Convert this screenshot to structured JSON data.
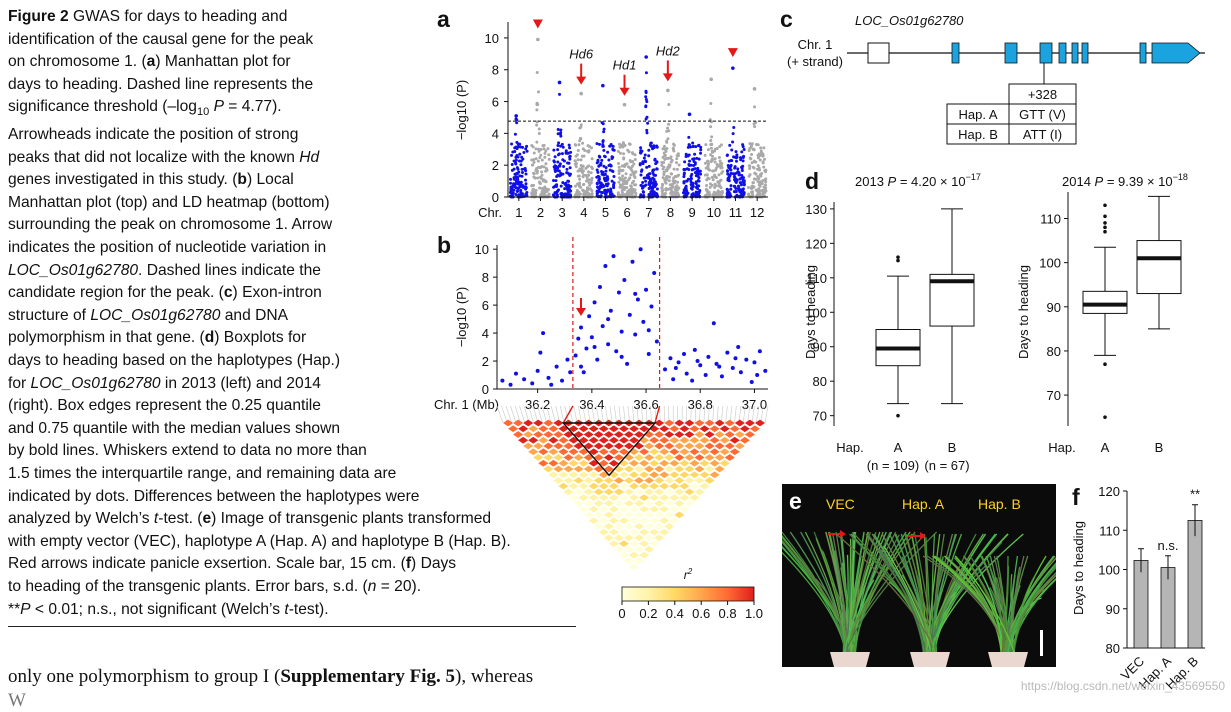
{
  "caption": {
    "lines": [
      {
        "segments": [
          {
            "t": "Figure 2",
            "b": true
          },
          {
            "t": "  GWAS for days to heading and"
          }
        ]
      },
      {
        "segments": [
          {
            "t": "identification of the causal gene for the peak"
          }
        ]
      },
      {
        "segments": [
          {
            "t": "on chromosome 1. ("
          },
          {
            "t": "a",
            "b": true
          },
          {
            "t": ") Manhattan plot for"
          }
        ]
      },
      {
        "segments": [
          {
            "t": "days to heading. Dashed line represents the"
          }
        ]
      },
      {
        "segments": [
          {
            "t": "significance threshold (–log"
          },
          {
            "t": "10",
            "sub": true
          },
          {
            "t": " "
          },
          {
            "t": "P",
            "i": true
          },
          {
            "t": " = 4.77)."
          }
        ]
      },
      {
        "segments": [
          {
            "t": "Arrowheads indicate the position of strong"
          }
        ]
      },
      {
        "segments": [
          {
            "t": "peaks that did not localize with the known "
          },
          {
            "t": "Hd",
            "i": true
          }
        ]
      },
      {
        "segments": [
          {
            "t": "genes investigated in this study. ("
          },
          {
            "t": "b",
            "b": true
          },
          {
            "t": ") Local"
          }
        ]
      },
      {
        "segments": [
          {
            "t": "Manhattan plot (top) and LD heatmap (bottom)"
          }
        ]
      },
      {
        "segments": [
          {
            "t": "surrounding the peak on chromosome 1. Arrow"
          }
        ]
      },
      {
        "segments": [
          {
            "t": "indicates the position of nucleotide variation in"
          }
        ]
      },
      {
        "segments": [
          {
            "t": "LOC_Os01g62780",
            "i": true
          },
          {
            "t": ". Dashed lines indicate the"
          }
        ]
      },
      {
        "segments": [
          {
            "t": "candidate region for the peak. ("
          },
          {
            "t": "c",
            "b": true
          },
          {
            "t": ") Exon-intron"
          }
        ]
      },
      {
        "segments": [
          {
            "t": "structure of "
          },
          {
            "t": "LOC_Os01g62780",
            "i": true
          },
          {
            "t": " and DNA"
          }
        ]
      },
      {
        "segments": [
          {
            "t": "polymorphism in that gene. ("
          },
          {
            "t": "d",
            "b": true
          },
          {
            "t": ") Boxplots for"
          }
        ]
      },
      {
        "segments": [
          {
            "t": "days to heading based on the haplotypes (Hap.)"
          }
        ]
      },
      {
        "segments": [
          {
            "t": "for "
          },
          {
            "t": "LOC_Os01g62780",
            "i": true
          },
          {
            "t": " in 2013 (left) and 2014"
          }
        ]
      },
      {
        "segments": [
          {
            "t": "(right). Box edges represent the 0.25 quantile"
          }
        ]
      },
      {
        "segments": [
          {
            "t": "and 0.75 quantile with the median values shown"
          }
        ]
      },
      {
        "segments": [
          {
            "t": "by bold lines. Whiskers extend to data no more than"
          }
        ]
      },
      {
        "segments": [
          {
            "t": "1.5 times the interquartile range, and remaining data are"
          }
        ]
      },
      {
        "segments": [
          {
            "t": "indicated by dots. Differences between the haplotypes were"
          }
        ]
      },
      {
        "segments": [
          {
            "t": "analyzed by Welch’s "
          },
          {
            "t": "t",
            "i": true
          },
          {
            "t": "-test. ("
          },
          {
            "t": "e",
            "b": true
          },
          {
            "t": ") Image of transgenic plants transformed"
          }
        ]
      },
      {
        "segments": [
          {
            "t": "with empty vector (VEC), haplotype A (Hap. A) and haplotype B (Hap. B)."
          }
        ]
      },
      {
        "segments": [
          {
            "t": "Red arrows indicate panicle exsertion. Scale bar, 15 cm. ("
          },
          {
            "t": "f",
            "b": true
          },
          {
            "t": ") Days"
          }
        ]
      },
      {
        "segments": [
          {
            "t": "to heading of the transgenic plants. Error bars, s.d. ("
          },
          {
            "t": "n",
            "i": true
          },
          {
            "t": " = 20)."
          }
        ]
      },
      {
        "segments": [
          {
            "t": "**"
          },
          {
            "t": "P",
            "i": true
          },
          {
            "t": " < 0.01; n.s., not significant (Welch’s "
          },
          {
            "t": "t",
            "i": true
          },
          {
            "t": "-test)."
          }
        ]
      }
    ]
  },
  "body": {
    "line1_pre": "only one polymorphism to group I (",
    "line1_ref": "Supplementary Fig. 5",
    "line1_post": "), whereas",
    "line2_partial": "                                                                  W"
  },
  "panels": {
    "a": "a",
    "b": "b",
    "c": "c",
    "d": "d",
    "e": "e",
    "f": "f"
  },
  "colors": {
    "blue": "#1010e6",
    "gray": "#a9a9a9",
    "red": "#e01919",
    "exon": "#1aa3df"
  },
  "chart_data": [
    {
      "panel": "a",
      "type": "scatter",
      "title": "",
      "ylabel": "−log10 (P)",
      "xlabel": "Chr.",
      "ylim": [
        0,
        11
      ],
      "yticks": [
        0,
        2,
        4,
        6,
        8,
        10
      ],
      "categories": [
        "1",
        "2",
        "3",
        "4",
        "5",
        "6",
        "7",
        "8",
        "9",
        "10",
        "11",
        "12"
      ],
      "series_colors": [
        "blue",
        "gray"
      ],
      "chromosome_peaks": [
        5.1,
        9.9,
        7.2,
        6.5,
        7.0,
        5.8,
        8.8,
        6.7,
        5.2,
        7.4,
        8.1,
        6.8
      ],
      "threshold": 4.77,
      "annotations": [
        {
          "label": "Hd6",
          "chr": "4",
          "kind": "arrow"
        },
        {
          "label": "Hd1",
          "chr": "6",
          "kind": "arrow"
        },
        {
          "label": "Hd2",
          "chr": "8",
          "kind": "arrow"
        },
        {
          "label": "",
          "chr": "2",
          "kind": "arrowhead"
        },
        {
          "label": "",
          "chr": "11",
          "kind": "arrowhead"
        }
      ]
    },
    {
      "panel": "b",
      "type": "scatter",
      "ylabel": "−log10 (P)",
      "xlabel": "Chr. 1 (Mb)",
      "xlim": [
        36.05,
        37.05
      ],
      "ylim": [
        0,
        10.3
      ],
      "xticks": [
        "36.2",
        "36.4",
        "36.6",
        "36.8",
        "37.0"
      ],
      "yticks": [
        0,
        2,
        4,
        6,
        8,
        10
      ],
      "candidate_region": [
        36.33,
        36.65
      ],
      "arrow_x": 36.36,
      "points_left": [
        [
          36.07,
          0.6
        ],
        [
          36.1,
          0.3
        ],
        [
          36.12,
          1.1
        ],
        [
          36.15,
          0.7
        ],
        [
          36.18,
          0.4
        ],
        [
          36.2,
          1.3
        ],
        [
          36.21,
          2.6
        ],
        [
          36.22,
          4.0
        ],
        [
          36.24,
          0.8
        ],
        [
          36.25,
          0.3
        ],
        [
          36.27,
          1.6
        ],
        [
          36.29,
          0.6
        ],
        [
          36.31,
          2.1
        ],
        [
          36.32,
          1.2
        ]
      ],
      "points_right": [
        [
          36.67,
          1.4
        ],
        [
          36.69,
          2.2
        ],
        [
          36.7,
          0.7
        ],
        [
          36.72,
          1.9
        ],
        [
          36.74,
          2.5
        ],
        [
          36.75,
          1.1
        ],
        [
          36.77,
          0.6
        ],
        [
          36.78,
          2.8
        ],
        [
          36.8,
          1.7
        ],
        [
          36.82,
          1.0
        ],
        [
          36.83,
          2.3
        ],
        [
          36.85,
          4.7
        ],
        [
          36.86,
          1.8
        ],
        [
          36.88,
          0.9
        ],
        [
          36.9,
          2.6
        ],
        [
          36.92,
          1.5
        ],
        [
          36.94,
          3.0
        ],
        [
          36.95,
          1.2
        ],
        [
          36.97,
          2.1
        ],
        [
          36.99,
          0.5
        ],
        [
          37.0,
          1.9
        ],
        [
          37.02,
          2.7
        ],
        [
          37.04,
          1.3
        ],
        [
          36.71,
          1.5
        ],
        [
          36.79,
          2.0
        ],
        [
          36.87,
          1.6
        ],
        [
          36.93,
          2.2
        ],
        [
          37.01,
          1.0
        ]
      ],
      "points_peak": [
        [
          36.34,
          2.4
        ],
        [
          36.35,
          3.6
        ],
        [
          36.36,
          4.4
        ],
        [
          36.37,
          1.2
        ],
        [
          36.38,
          2.9
        ],
        [
          36.39,
          5.2
        ],
        [
          36.4,
          3.7
        ],
        [
          36.41,
          6.2
        ],
        [
          36.42,
          2.1
        ],
        [
          36.43,
          7.3
        ],
        [
          36.44,
          4.5
        ],
        [
          36.45,
          8.8
        ],
        [
          36.46,
          3.2
        ],
        [
          36.47,
          5.6
        ],
        [
          36.48,
          9.5
        ],
        [
          36.49,
          2.7
        ],
        [
          36.5,
          6.9
        ],
        [
          36.51,
          4.1
        ],
        [
          36.52,
          7.8
        ],
        [
          36.53,
          1.8
        ],
        [
          36.54,
          5.3
        ],
        [
          36.55,
          9.1
        ],
        [
          36.56,
          3.9
        ],
        [
          36.57,
          6.4
        ],
        [
          36.58,
          10.0
        ],
        [
          36.59,
          4.8
        ],
        [
          36.6,
          7.1
        ],
        [
          36.61,
          2.5
        ],
        [
          36.62,
          5.9
        ],
        [
          36.63,
          8.3
        ],
        [
          36.64,
          3.4
        ],
        [
          36.36,
          1.6
        ],
        [
          36.41,
          3.0
        ],
        [
          36.46,
          5.0
        ],
        [
          36.51,
          2.3
        ],
        [
          36.56,
          6.8
        ],
        [
          36.61,
          4.2
        ]
      ],
      "ld_legend": {
        "label": "r2",
        "ticks": [
          "0",
          "0.2",
          "0.4",
          "0.6",
          "0.8",
          "1.0"
        ]
      }
    },
    {
      "panel": "c",
      "type": "gene-structure",
      "gene": "LOC_Os01g62780",
      "chromosome_label_1": "Chr. 1",
      "chromosome_label_2": "(+ strand)",
      "table_header": [
        "",
        "+328"
      ],
      "table_rows": [
        [
          "Hap. A",
          "GTT (V)"
        ],
        [
          "Hap. B",
          "ATT (I)"
        ]
      ]
    },
    {
      "panel": "d",
      "type": "box",
      "ylabel": "Days to heading",
      "xlabel": "Hap.",
      "charts": [
        {
          "title_prefix": "2013 ",
          "title_p": "P",
          "title_rest": " = 4.20 × 10",
          "title_exp": "−17",
          "ylim": [
            67,
            132
          ],
          "yticks": [
            70,
            80,
            90,
            100,
            110,
            120,
            130
          ],
          "categories": [
            "A",
            "B"
          ],
          "boxes": [
            {
              "q1": 84.5,
              "median": 89.5,
              "q3": 95,
              "whisker_low": 73.5,
              "whisker_high": 110.5,
              "outliers": [
                115,
                116,
                70
              ]
            },
            {
              "q1": 96,
              "median": 109,
              "q3": 111,
              "whisker_low": 73.5,
              "whisker_high": 130,
              "outliers": []
            }
          ],
          "n_labels": [
            "(n = 109)",
            "(n = 67)"
          ]
        },
        {
          "title_prefix": "2014 ",
          "title_p": "P",
          "title_rest": " = 9.39 × 10",
          "title_exp": "−18",
          "ylim": [
            63,
            116
          ],
          "yticks": [
            70,
            80,
            90,
            100,
            110
          ],
          "categories": [
            "A",
            "B"
          ],
          "boxes": [
            {
              "q1": 88.5,
              "median": 90.5,
              "q3": 93.5,
              "whisker_low": 79,
              "whisker_high": 103.5,
              "outliers": [
                107,
                108,
                109,
                110.5,
                113,
                77,
                65
              ]
            },
            {
              "q1": 93,
              "median": 101,
              "q3": 105,
              "whisker_low": 85,
              "whisker_high": 115,
              "outliers": []
            }
          ]
        }
      ]
    },
    {
      "panel": "e",
      "type": "image",
      "labels": [
        "VEC",
        "Hap. A",
        "Hap. B"
      ]
    },
    {
      "panel": "f",
      "type": "bar",
      "ylabel": "Days to heading",
      "ylim": [
        80,
        120
      ],
      "yticks": [
        80,
        90,
        100,
        110,
        120
      ],
      "categories": [
        "VEC",
        "Hap. A",
        "Hap. B"
      ],
      "values": [
        102.3,
        100.5,
        112.5
      ],
      "errors": [
        3,
        3,
        4
      ],
      "significance": [
        "",
        "n.s.",
        "**"
      ]
    }
  ],
  "watermark": "https://blog.csdn.net/weixin_43569550"
}
